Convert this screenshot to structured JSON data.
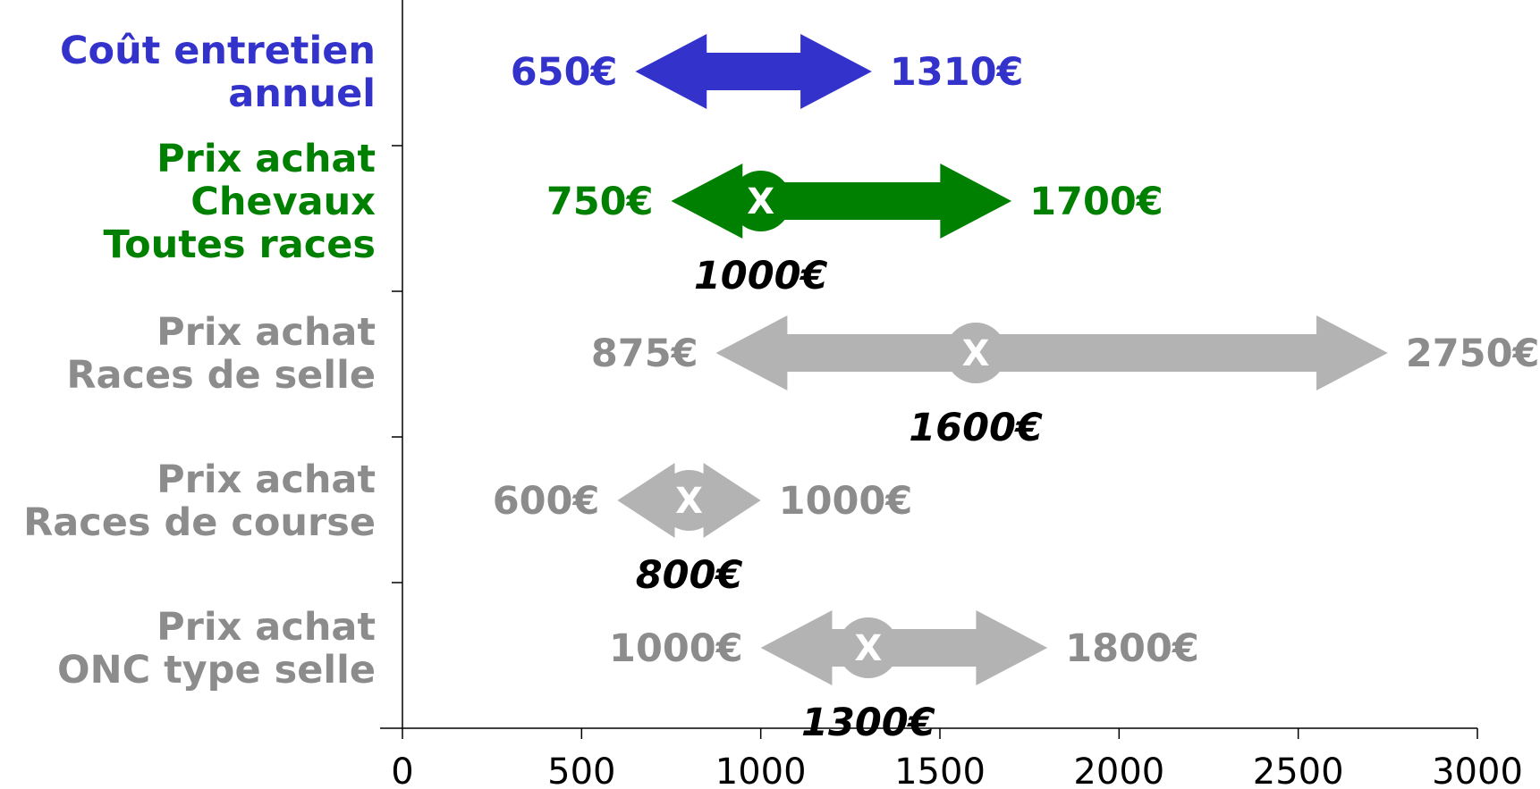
{
  "chart_data": {
    "type": "range",
    "xlim": [
      0,
      3000
    ],
    "x_ticks": [
      "0",
      "500",
      "1000",
      "1500",
      "2000",
      "2500",
      "3000"
    ],
    "marker_symbol": "X",
    "colors": {
      "blue": "#3333cc",
      "green": "#008000",
      "grey": "#b3b3b3",
      "grey_text": "#8c8c8c"
    },
    "rows": [
      {
        "label_lines": [
          "Coût entretien",
          "annuel"
        ],
        "min": 650,
        "max": 1310,
        "min_label": "650€",
        "max_label": "1310€",
        "marker": null,
        "marker_label": "",
        "color": "#3333cc",
        "text_color": "#3333cc"
      },
      {
        "label_lines": [
          "Prix achat",
          "Chevaux",
          "Toutes races"
        ],
        "min": 750,
        "max": 1700,
        "min_label": "750€",
        "max_label": "1700€",
        "marker": 1000,
        "marker_label": "1000€",
        "color": "#008000",
        "text_color": "#008000"
      },
      {
        "label_lines": [
          "Prix achat",
          "Races de selle"
        ],
        "min": 875,
        "max": 2750,
        "min_label": "875€",
        "max_label": "2750€",
        "marker": 1600,
        "marker_label": "1600€",
        "color": "#b3b3b3",
        "text_color": "#8c8c8c"
      },
      {
        "label_lines": [
          "Prix achat",
          "Races de course"
        ],
        "min": 600,
        "max": 1000,
        "min_label": "600€",
        "max_label": "1000€",
        "marker": 800,
        "marker_label": "800€",
        "color": "#b3b3b3",
        "text_color": "#8c8c8c"
      },
      {
        "label_lines": [
          "Prix achat",
          "ONC type selle"
        ],
        "min": 1000,
        "max": 1800,
        "min_label": "1000€",
        "max_label": "1800€",
        "marker": 1300,
        "marker_label": "1300€",
        "color": "#b3b3b3",
        "text_color": "#8c8c8c"
      }
    ]
  }
}
